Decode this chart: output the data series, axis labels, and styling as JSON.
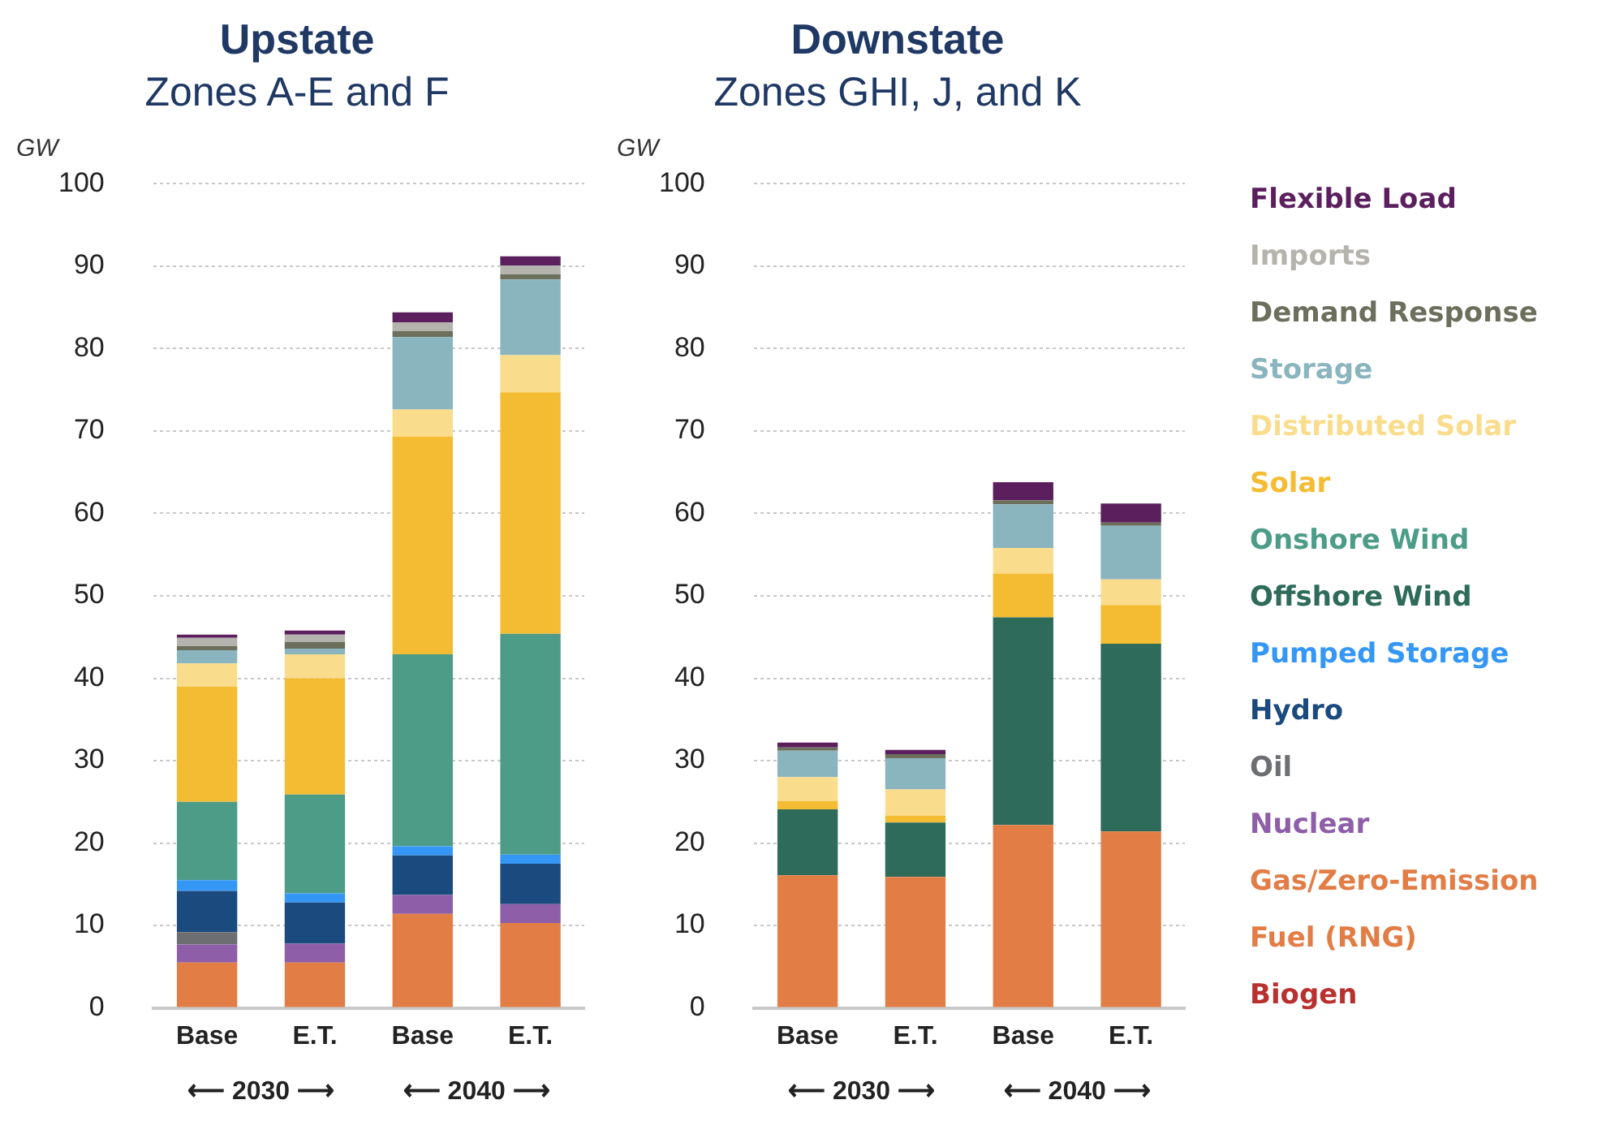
{
  "chart_data": [
    {
      "type": "bar",
      "stacked": true,
      "title": "Upstate",
      "subtitle": "Zones A-E and F",
      "ylabel": "GW",
      "categories": [
        "Base",
        "E.T.",
        "Base",
        "E.T."
      ],
      "annotations": [
        "⟵ 2030 ⟶",
        "⟵ 2040 ⟶"
      ],
      "ylim": [
        0,
        100
      ],
      "yticks": [
        0,
        10,
        20,
        30,
        40,
        50,
        60,
        70,
        80,
        90,
        100
      ],
      "grid": "y",
      "series": [
        {
          "color": "#b8312f",
          "values": [
            0,
            0,
            0,
            0
          ]
        },
        {
          "color": "#e27d46",
          "values": [
            5.5,
            5.5,
            11.4,
            10.3
          ]
        },
        {
          "color": "#8e5ea8",
          "values": [
            2.2,
            2.3,
            2.3,
            2.3
          ]
        },
        {
          "color": "#6d6e71",
          "values": [
            1.5,
            0,
            0,
            0
          ]
        },
        {
          "color": "#1a4a7e",
          "values": [
            5.0,
            5.0,
            4.8,
            4.9
          ]
        },
        {
          "color": "#3597f5",
          "values": [
            1.3,
            1.1,
            1.1,
            1.1
          ]
        },
        {
          "color": "#2e6b5a",
          "values": [
            0,
            0,
            0,
            0
          ]
        },
        {
          "color": "#4c9c88",
          "values": [
            9.5,
            12.0,
            23.3,
            26.8
          ]
        },
        {
          "color": "#f4bc33",
          "values": [
            14.0,
            14.1,
            26.4,
            29.3
          ]
        },
        {
          "color": "#f9dc8c",
          "values": [
            2.8,
            2.9,
            3.3,
            4.5
          ]
        },
        {
          "color": "#8ab5bf",
          "values": [
            1.6,
            0.7,
            8.8,
            9.2
          ]
        },
        {
          "color": "#6b6f5c",
          "values": [
            0.5,
            0.8,
            0.7,
            0.6
          ]
        },
        {
          "color": "#b4b3ad",
          "values": [
            1.0,
            0.9,
            1.1,
            1.1
          ]
        },
        {
          "color": "#5c1f5e",
          "values": [
            0.4,
            0.5,
            1.2,
            1.1
          ]
        }
      ]
    },
    {
      "type": "bar",
      "stacked": true,
      "title": "Downstate",
      "subtitle": "Zones GHI, J, and K",
      "ylabel": "GW",
      "categories": [
        "Base",
        "E.T.",
        "Base",
        "E.T."
      ],
      "annotations": [
        "⟵ 2030 ⟶",
        "⟵ 2040 ⟶"
      ],
      "ylim": [
        0,
        100
      ],
      "yticks": [
        0,
        10,
        20,
        30,
        40,
        50,
        60,
        70,
        80,
        90,
        100
      ],
      "grid": "y",
      "series": [
        {
          "name": "Biogen",
          "color": "#b8312f",
          "values": [
            0,
            0,
            0,
            0
          ]
        },
        {
          "name": "Gas/Zero-Emission Fuel (RNG)",
          "color": "#e27d46",
          "values": [
            16.1,
            15.9,
            22.2,
            21.4
          ]
        },
        {
          "name": "Nuclear",
          "color": "#8e5ea8",
          "values": [
            0,
            0,
            0,
            0
          ]
        },
        {
          "name": "Oil",
          "color": "#6d6e71",
          "values": [
            0,
            0,
            0,
            0
          ]
        },
        {
          "name": "Hydro",
          "color": "#1a4a7e",
          "values": [
            0,
            0,
            0,
            0
          ]
        },
        {
          "name": "Pumped Storage",
          "color": "#3597f5",
          "values": [
            0,
            0,
            0,
            0
          ]
        },
        {
          "name": "Offshore Wind",
          "color": "#2e6b5a",
          "values": [
            8.0,
            6.6,
            25.2,
            22.8
          ]
        },
        {
          "name": "Onshore Wind",
          "color": "#4c9c88",
          "values": [
            0,
            0,
            0,
            0
          ]
        },
        {
          "name": "Solar",
          "color": "#f4bc33",
          "values": [
            1.0,
            0.8,
            5.3,
            4.7
          ]
        },
        {
          "name": "Distributed Solar",
          "color": "#f9dc8c",
          "values": [
            2.9,
            3.2,
            3.1,
            3.1
          ]
        },
        {
          "name": "Storage",
          "color": "#8ab5bf",
          "values": [
            3.2,
            3.8,
            5.3,
            6.5
          ]
        },
        {
          "name": "Demand Response",
          "color": "#6b6f5c",
          "values": [
            0.4,
            0.5,
            0.5,
            0.4
          ]
        },
        {
          "name": "Imports",
          "color": "#b4b3ad",
          "values": [
            0,
            0,
            0,
            0
          ]
        },
        {
          "name": "Flexible Load",
          "color": "#5c1f5e",
          "values": [
            0.6,
            0.5,
            2.2,
            2.3
          ]
        }
      ]
    }
  ]
}
